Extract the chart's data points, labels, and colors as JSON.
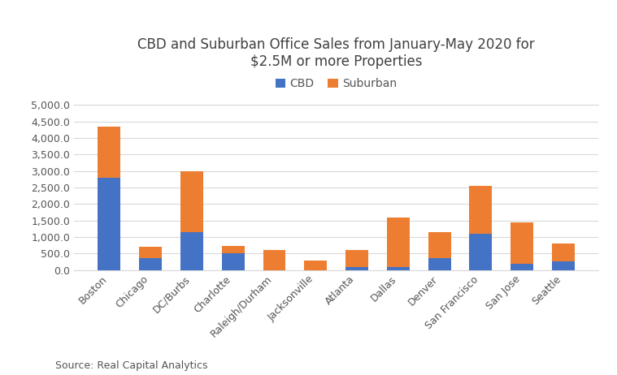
{
  "title": "CBD and Suburban Office Sales from January-May 2020 for\n$2.5M or more Properties",
  "categories": [
    "Boston",
    "Chicago",
    "DC/Burbs",
    "Charlotte",
    "Raleigh/Durham",
    "Jacksonville",
    "Atlanta",
    "Dallas",
    "Denver",
    "San Francisco",
    "San Jose",
    "Seattle"
  ],
  "cbd_values": [
    2800,
    350,
    1150,
    500,
    0,
    0,
    100,
    100,
    350,
    1100,
    200,
    250
  ],
  "suburban_values": [
    1550,
    350,
    1850,
    230,
    600,
    280,
    500,
    1500,
    800,
    1450,
    1250,
    550
  ],
  "cbd_color": "#4472C4",
  "suburban_color": "#ED7D31",
  "ylim": [
    0,
    5000
  ],
  "ytick_interval": 500,
  "legend_labels": [
    "CBD",
    "Suburban"
  ],
  "source_text": "Source: Real Capital Analytics",
  "background_color": "#ffffff",
  "grid_color": "#d9d9d9",
  "title_fontsize": 12,
  "tick_fontsize": 9,
  "legend_fontsize": 10,
  "source_fontsize": 9
}
